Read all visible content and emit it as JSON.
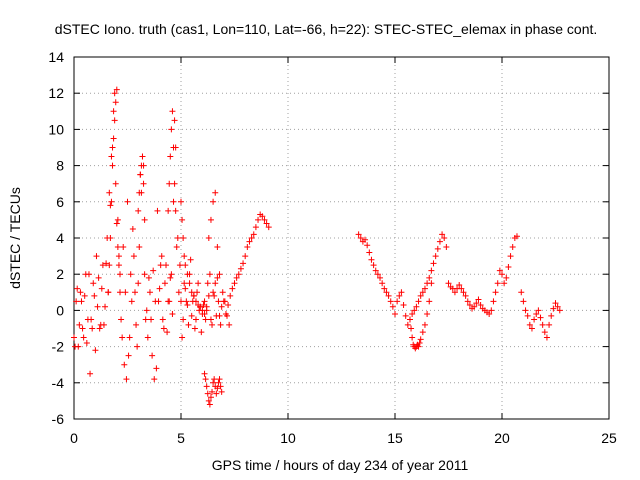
{
  "chart_data": {
    "type": "scatter",
    "title": "dSTEC Iono. truth (cas1, Lon=110, Lat=-66, h=22): STEC-STEC_elemax in phase cont.",
    "xlabel": "GPS time / hours of day 234 of year 2011",
    "ylabel": "dSTEC  / TECUs",
    "xlim": [
      0,
      25
    ],
    "ylim": [
      -6,
      14
    ],
    "xticks": [
      0,
      5,
      10,
      15,
      20,
      25
    ],
    "yticks": [
      -6,
      -4,
      -2,
      0,
      2,
      4,
      6,
      8,
      10,
      12,
      14
    ],
    "xtick_labels": [
      "0",
      "5",
      "10",
      "15",
      "20",
      "25"
    ],
    "ytick_labels": [
      "-6",
      "-4",
      "-2",
      "0",
      "2",
      "4",
      "6",
      "8",
      "10",
      "12",
      "14"
    ],
    "grid": true,
    "marker": "+",
    "marker_color": "#ff0000",
    "series": [
      {
        "name": "dSTEC",
        "x": [
          0.0,
          0.1,
          0.2,
          0.3,
          0.4,
          0.5,
          0.6,
          0.7,
          0.8,
          0.9,
          1.0,
          1.1,
          1.2,
          1.3,
          1.4,
          1.5,
          1.6,
          1.7,
          1.8,
          1.9,
          2.0,
          2.1,
          2.2,
          2.3,
          2.4,
          2.5,
          2.6,
          2.7,
          2.8,
          2.9,
          3.0,
          3.1,
          3.2,
          3.3,
          3.4,
          3.5,
          3.6,
          3.7,
          3.8,
          3.9,
          4.0,
          4.1,
          4.2,
          4.3,
          4.4,
          4.5,
          4.6,
          4.7,
          4.8,
          4.9,
          5.0,
          5.1,
          5.2,
          5.3,
          5.4,
          5.5,
          5.6,
          5.7,
          5.8,
          5.9,
          6.0,
          6.1,
          6.2,
          6.3,
          6.4,
          6.5,
          6.6,
          6.7,
          6.8,
          6.9,
          7.0,
          7.1,
          7.2,
          7.3,
          7.4,
          7.5,
          7.6,
          7.7,
          7.8,
          7.9,
          8.0,
          8.1,
          8.2,
          8.3,
          8.4,
          8.5,
          8.6,
          8.7,
          8.8,
          8.9,
          9.0,
          9.1,
          0.05,
          0.15,
          0.25,
          0.35,
          0.45,
          0.55,
          0.65,
          0.75,
          0.85,
          0.95,
          1.05,
          1.15,
          1.25,
          1.35,
          1.45,
          1.55,
          1.65,
          1.75,
          1.85,
          1.95,
          2.05,
          2.15,
          2.25,
          2.35,
          2.45,
          2.55,
          2.65,
          2.75,
          2.85,
          2.95,
          3.05,
          3.15,
          3.25,
          3.35,
          3.45,
          3.55,
          3.65,
          3.75,
          3.85,
          3.95,
          4.05,
          4.15,
          4.25,
          4.35,
          4.45,
          4.55,
          4.65,
          4.75,
          4.85,
          4.95,
          5.05,
          5.15,
          5.25,
          5.35,
          5.45,
          5.55,
          5.65,
          5.75,
          5.85,
          5.95,
          6.05,
          6.15,
          6.25,
          6.35,
          6.45,
          6.55,
          6.65,
          6.75,
          6.85,
          6.95,
          7.05,
          7.15,
          7.25,
          1.6,
          1.65,
          1.7,
          1.75,
          1.8,
          1.85,
          1.9,
          1.95,
          2.0,
          2.05,
          2.1,
          2.15,
          3.0,
          3.05,
          3.1,
          3.15,
          3.2,
          3.25,
          3.3,
          4.4,
          4.45,
          4.5,
          4.55,
          4.6,
          4.65,
          4.7,
          4.75,
          5.0,
          5.05,
          5.1,
          5.15,
          5.2,
          5.3,
          5.4,
          5.5,
          5.6,
          5.7,
          5.8,
          5.9,
          6.0,
          6.1,
          6.2,
          6.3,
          6.4,
          6.5,
          6.6,
          6.7,
          6.8,
          6.1,
          6.15,
          6.2,
          6.25,
          6.3,
          6.35,
          6.4,
          6.45,
          6.5,
          6.55,
          6.6,
          6.65,
          6.7,
          6.75,
          6.8,
          6.85,
          6.9,
          13.3,
          13.4,
          13.5,
          13.6,
          13.7,
          13.8,
          13.9,
          14.0,
          14.1,
          14.2,
          14.3,
          14.4,
          14.5,
          14.6,
          14.7,
          14.8,
          14.9,
          15.0,
          15.1,
          15.2,
          15.3,
          15.4,
          15.5,
          15.6,
          15.7,
          15.8,
          15.9,
          16.0,
          16.1,
          16.2,
          16.3,
          16.4,
          16.5,
          16.6,
          16.7,
          16.8,
          16.9,
          17.0,
          17.1,
          17.2,
          17.3,
          17.4,
          15.7,
          15.75,
          15.8,
          15.85,
          15.9,
          15.95,
          16.0,
          16.05,
          16.1,
          16.15,
          16.2,
          16.3,
          16.4,
          16.5,
          16.6,
          16.7,
          17.5,
          17.6,
          17.7,
          17.8,
          17.9,
          18.0,
          18.1,
          18.2,
          18.3,
          18.4,
          18.5,
          18.6,
          18.7,
          18.8,
          18.9,
          19.0,
          19.1,
          19.2,
          19.3,
          19.4,
          19.5,
          19.6,
          19.7,
          19.8,
          19.9,
          20.0,
          20.1,
          20.2,
          20.3,
          20.4,
          20.5,
          20.6,
          20.7,
          20.9,
          21.0,
          21.1,
          21.2,
          21.3,
          21.4,
          21.5,
          21.6,
          21.7,
          21.8,
          21.9,
          22.0,
          22.1,
          22.2,
          22.3,
          22.4,
          22.5,
          22.6,
          22.7
        ],
        "y": [
          -1.5,
          0.5,
          -2.0,
          1.0,
          -1.0,
          0.8,
          -1.8,
          2.0,
          -0.5,
          1.5,
          -2.2,
          0.2,
          -1.0,
          1.2,
          -0.8,
          2.6,
          1.0,
          5.8,
          9.0,
          12.0,
          4.8,
          2.5,
          -0.5,
          3.5,
          1.0,
          6.0,
          -1.5,
          0.5,
          3.0,
          -0.8,
          1.5,
          7.5,
          8.5,
          2.0,
          0.0,
          1.8,
          -0.5,
          2.2,
          0.5,
          5.5,
          1.2,
          3.0,
          -1.0,
          2.5,
          0.5,
          1.8,
          -0.2,
          10.5,
          3.5,
          1.0,
          0.5,
          -0.5,
          1.2,
          0.3,
          2.0,
          -0.3,
          0.8,
          -0.5,
          1.5,
          0.2,
          -0.2,
          0.5,
          0.0,
          0.8,
          -0.5,
          1.0,
          1.5,
          1.8,
          -0.3,
          0.2,
          0.5,
          -0.2,
          0.3,
          0.8,
          1.2,
          1.5,
          1.8,
          2.0,
          2.3,
          2.6,
          3.0,
          3.5,
          3.8,
          4.0,
          4.2,
          4.6,
          5.0,
          5.3,
          5.2,
          5.0,
          4.8,
          4.6,
          -2.0,
          1.2,
          -0.8,
          0.5,
          -1.5,
          2.0,
          -0.5,
          -3.5,
          -1.0,
          0.8,
          3.0,
          1.8,
          -0.8,
          2.5,
          0.2,
          4.0,
          6.5,
          8.5,
          11.0,
          7.0,
          3.5,
          1.0,
          -1.5,
          -3.0,
          -3.8,
          -2.5,
          2.0,
          4.5,
          1.0,
          -2.0,
          3.5,
          6.5,
          8.0,
          -0.5,
          -1.5,
          1.0,
          -2.5,
          -3.8,
          -3.2,
          0.5,
          2.5,
          -0.5,
          1.5,
          -1.2,
          0.5,
          2.0,
          6.0,
          9.0,
          4.0,
          2.5,
          -1.5,
          1.5,
          0.5,
          -0.8,
          2.8,
          0.5,
          -1.0,
          1.0,
          0.0,
          -1.2,
          0.3,
          -0.5,
          1.5,
          2.0,
          -0.8,
          0.8,
          -0.3,
          0.5,
          -0.8,
          1.0,
          0.5,
          -0.3,
          -0.8,
          1.0,
          2.5,
          4.0,
          6.0,
          8.0,
          9.5,
          10.5,
          11.5,
          12.2,
          5.0,
          3.0,
          2.0,
          5.5,
          6.5,
          7.5,
          8.0,
          8.5,
          7.0,
          5.0,
          5.5,
          7.0,
          8.5,
          10.0,
          11.0,
          9.0,
          7.0,
          5.5,
          6.0,
          5.0,
          4.0,
          3.0,
          2.5,
          2.0,
          1.5,
          1.0,
          0.8,
          0.5,
          0.3,
          0.2,
          0.0,
          -0.2,
          0.2,
          4.0,
          5.0,
          6.0,
          6.5,
          3.5,
          2.0,
          -3.5,
          -3.8,
          -4.2,
          -4.6,
          -5.0,
          -5.2,
          -4.8,
          -4.5,
          -4.0,
          -3.8,
          -4.2,
          -4.6,
          -4.3,
          -4.0,
          -3.8,
          -4.2,
          -4.5,
          4.2,
          4.0,
          3.8,
          3.9,
          3.6,
          3.2,
          2.8,
          2.5,
          2.2,
          2.0,
          1.8,
          1.5,
          1.2,
          1.0,
          0.8,
          0.5,
          0.2,
          -0.2,
          0.5,
          0.8,
          1.0,
          0.3,
          -0.3,
          -0.8,
          -0.5,
          -0.2,
          0.0,
          0.2,
          0.5,
          0.8,
          1.0,
          1.2,
          1.5,
          1.8,
          2.2,
          2.6,
          3.0,
          3.4,
          3.8,
          4.2,
          4.0,
          3.5,
          -0.5,
          -1.0,
          -1.5,
          -1.9,
          -2.0,
          -2.1,
          -2.0,
          -1.9,
          -2.0,
          -1.8,
          -1.6,
          -1.2,
          -0.8,
          -0.2,
          0.5,
          1.5,
          1.5,
          1.3,
          1.2,
          1.0,
          1.2,
          1.4,
          1.2,
          1.0,
          0.8,
          0.5,
          0.3,
          0.1,
          0.2,
          0.4,
          0.6,
          0.3,
          0.1,
          0.0,
          -0.1,
          -0.2,
          0.0,
          0.5,
          1.0,
          1.5,
          2.2,
          2.0,
          1.5,
          1.8,
          2.4,
          3.0,
          3.5,
          4.0,
          4.1,
          1.0,
          0.5,
          0.0,
          -0.3,
          -0.8,
          -1.0,
          -0.5,
          -0.2,
          0.0,
          -0.4,
          -0.8,
          -1.2,
          -1.5,
          -0.8,
          -0.3,
          0.1,
          0.4,
          0.2,
          0.0
        ]
      }
    ]
  }
}
